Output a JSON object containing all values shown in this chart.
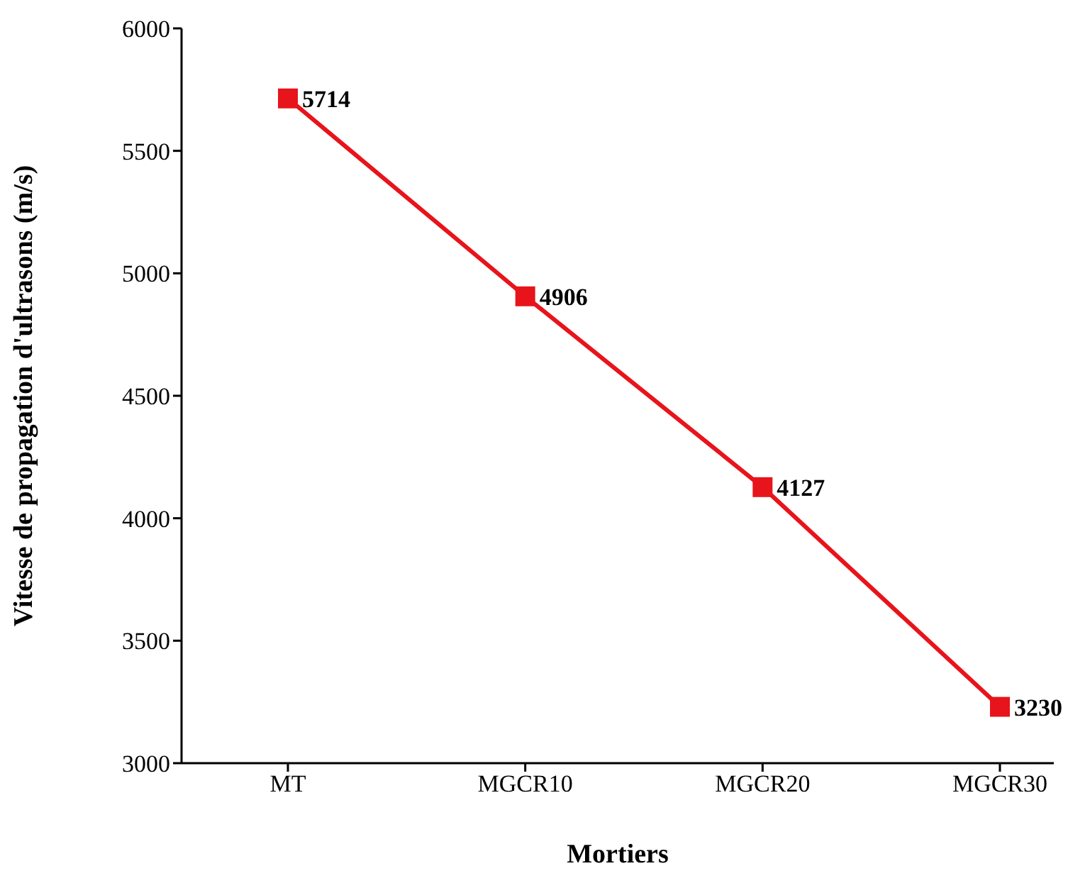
{
  "chart_data": {
    "type": "line",
    "xlabel": "Mortiers",
    "ylabel": "Vitesse de propagation d'ultrasons (m/s)",
    "categories": [
      "MT",
      "MGCR10",
      "MGCR20",
      "MGCR30"
    ],
    "series": [
      {
        "color": "#e8141b",
        "values": [
          5714,
          4906,
          4127,
          3230
        ]
      }
    ],
    "ylim": [
      3000,
      6000
    ],
    "yticks": [
      3000,
      3500,
      4000,
      4500,
      5000,
      5500,
      6000
    ],
    "marker": "square",
    "line_style": "solid",
    "data_labels": true,
    "grid": false,
    "legend": false
  }
}
